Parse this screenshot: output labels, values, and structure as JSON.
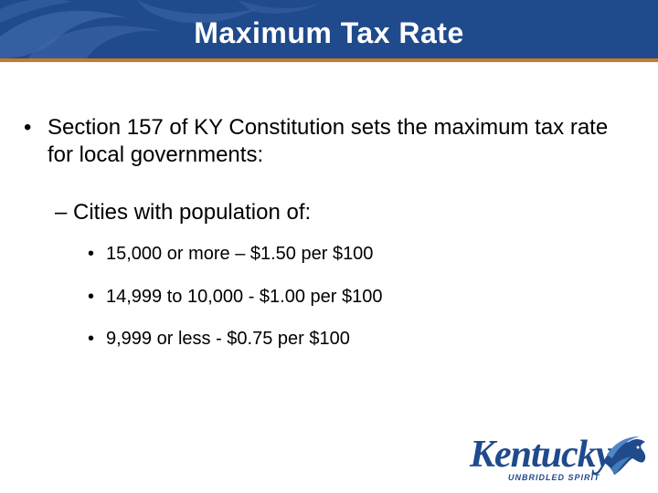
{
  "slide": {
    "title": "Maximum Tax Rate"
  },
  "content": {
    "bullet1": {
      "marker": "•",
      "text": "Section 157 of KY Constitution sets the maximum tax rate for local governments:"
    },
    "sub_bullet": {
      "text": "– Cities with population of:"
    },
    "rates": [
      {
        "marker": "•",
        "text": "15,000 or more – $1.50 per $100"
      },
      {
        "marker": "•",
        "text": "14,999 to 10,000 - $1.00 per $100"
      },
      {
        "marker": "•",
        "text": "9,999 or less - $0.75 per $100"
      }
    ]
  },
  "logo": {
    "word": "Kentucky",
    "tagline": "UNBRIDLED SPIRIT",
    "icon": "horse-head-icon"
  },
  "colors": {
    "header_blue": "#1f4a8c",
    "accent_orange": "#c97a2a",
    "logo_blue": "#1f4a8c"
  }
}
